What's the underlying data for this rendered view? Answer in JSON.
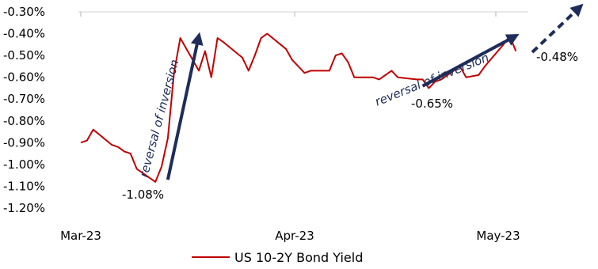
{
  "chart_data": {
    "type": "line",
    "title": "",
    "xlabel": "",
    "ylabel": "",
    "x_ticks": [
      "Mar-23",
      "Apr-23",
      "May-23"
    ],
    "y_ticks": [
      "-0.30%",
      "-0.40%",
      "-0.50%",
      "-0.60%",
      "-0.70%",
      "-0.80%",
      "-0.90%",
      "-1.00%",
      "-1.10%",
      "-1.20%"
    ],
    "ylim": [
      -1.2,
      -0.3
    ],
    "xlim": [
      "2023-03-01",
      "2023-05-12"
    ],
    "legend": {
      "position": "bottom",
      "label": "US 10-2Y Bond Yield"
    },
    "series": [
      {
        "name": "US 10-2Y Bond Yield",
        "color": "#c00000",
        "points": [
          [
            "2023-03-01",
            -0.9
          ],
          [
            "2023-03-02",
            -0.89
          ],
          [
            "2023-03-03",
            -0.84
          ],
          [
            "2023-03-06",
            -0.91
          ],
          [
            "2023-03-07",
            -0.92
          ],
          [
            "2023-03-08",
            -0.94
          ],
          [
            "2023-03-09",
            -0.95
          ],
          [
            "2023-03-10",
            -1.02
          ],
          [
            "2023-03-13",
            -1.08
          ],
          [
            "2023-03-14",
            -1.01
          ],
          [
            "2023-03-15",
            -0.88
          ],
          [
            "2023-03-16",
            -0.58
          ],
          [
            "2023-03-17",
            -0.42
          ],
          [
            "2023-03-20",
            -0.57
          ],
          [
            "2023-03-21",
            -0.48
          ],
          [
            "2023-03-22",
            -0.6
          ],
          [
            "2023-03-23",
            -0.42
          ],
          [
            "2023-03-24",
            -0.44
          ],
          [
            "2023-03-27",
            -0.51
          ],
          [
            "2023-03-28",
            -0.57
          ],
          [
            "2023-03-29",
            -0.5
          ],
          [
            "2023-03-30",
            -0.42
          ],
          [
            "2023-03-31",
            -0.4
          ],
          [
            "2023-04-03",
            -0.47
          ],
          [
            "2023-04-04",
            -0.52
          ],
          [
            "2023-04-05",
            -0.55
          ],
          [
            "2023-04-06",
            -0.58
          ],
          [
            "2023-04-07",
            -0.57
          ],
          [
            "2023-04-10",
            -0.57
          ],
          [
            "2023-04-11",
            -0.5
          ],
          [
            "2023-04-12",
            -0.49
          ],
          [
            "2023-04-13",
            -0.53
          ],
          [
            "2023-04-14",
            -0.6
          ],
          [
            "2023-04-17",
            -0.6
          ],
          [
            "2023-04-18",
            -0.61
          ],
          [
            "2023-04-19",
            -0.59
          ],
          [
            "2023-04-20",
            -0.57
          ],
          [
            "2023-04-21",
            -0.6
          ],
          [
            "2023-04-24",
            -0.61
          ],
          [
            "2023-04-25",
            -0.61
          ],
          [
            "2023-04-26",
            -0.65
          ],
          [
            "2023-04-27",
            -0.62
          ],
          [
            "2023-04-28",
            -0.61
          ],
          [
            "2023-05-01",
            -0.55
          ],
          [
            "2023-05-02",
            -0.6
          ],
          [
            "2023-05-04",
            -0.59
          ],
          [
            "2023-05-05",
            -0.55
          ],
          [
            "2023-05-08",
            -0.45
          ],
          [
            "2023-05-09",
            -0.41
          ],
          [
            "2023-05-10",
            -0.48
          ]
        ]
      }
    ],
    "annotations": [
      {
        "text": "-1.08%",
        "date": "2023-03-13",
        "value": -1.08
      },
      {
        "text": "-0.65%",
        "date": "2023-04-26",
        "value": -0.65
      },
      {
        "text": "-0.48%",
        "date": "2023-05-10",
        "value": -0.48
      },
      {
        "text": "reversal of inversion"
      },
      {
        "text": "reversal of inversion"
      }
    ],
    "arrows": [
      {
        "from": [
          "2023-03-15",
          -1.07
        ],
        "to": [
          "2023-03-20",
          -0.41
        ],
        "color": "#1f2d5a"
      },
      {
        "from": [
          "2023-04-25",
          -0.64
        ],
        "to": [
          "2023-05-10",
          -0.41
        ],
        "color": "#1f2d5a"
      }
    ]
  }
}
